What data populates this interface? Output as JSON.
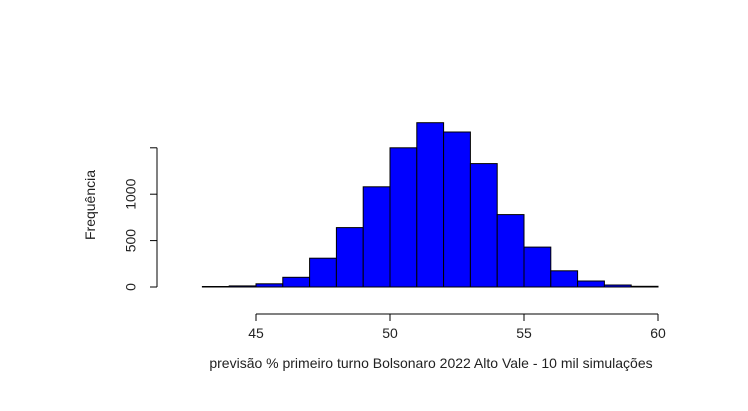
{
  "chart_data": {
    "type": "bar",
    "title": "",
    "xlabel": "previsão % primeiro turno Bolsonaro 2022 Alto Vale - 10 mil simulações",
    "ylabel": "Frequência",
    "bins": [
      {
        "from": 43,
        "to": 44,
        "value": 5
      },
      {
        "from": 44,
        "to": 45,
        "value": 12
      },
      {
        "from": 45,
        "to": 46,
        "value": 35
      },
      {
        "from": 46,
        "to": 47,
        "value": 105
      },
      {
        "from": 47,
        "to": 48,
        "value": 310
      },
      {
        "from": 48,
        "to": 49,
        "value": 640
      },
      {
        "from": 49,
        "to": 50,
        "value": 1080
      },
      {
        "from": 50,
        "to": 51,
        "value": 1500
      },
      {
        "from": 51,
        "to": 52,
        "value": 1770
      },
      {
        "from": 52,
        "to": 53,
        "value": 1670
      },
      {
        "from": 53,
        "to": 54,
        "value": 1330
      },
      {
        "from": 54,
        "to": 55,
        "value": 780
      },
      {
        "from": 55,
        "to": 56,
        "value": 430
      },
      {
        "from": 56,
        "to": 57,
        "value": 175
      },
      {
        "from": 57,
        "to": 58,
        "value": 65
      },
      {
        "from": 58,
        "to": 59,
        "value": 22
      },
      {
        "from": 59,
        "to": 60,
        "value": 8
      }
    ],
    "xticks": [
      45,
      50,
      55,
      60
    ],
    "yticks": [
      0,
      500,
      1000
    ],
    "xlim": [
      42,
      61
    ],
    "ylim": [
      0,
      1800
    ],
    "bar_color": "#0000ff",
    "grid": false,
    "legend": "none"
  }
}
